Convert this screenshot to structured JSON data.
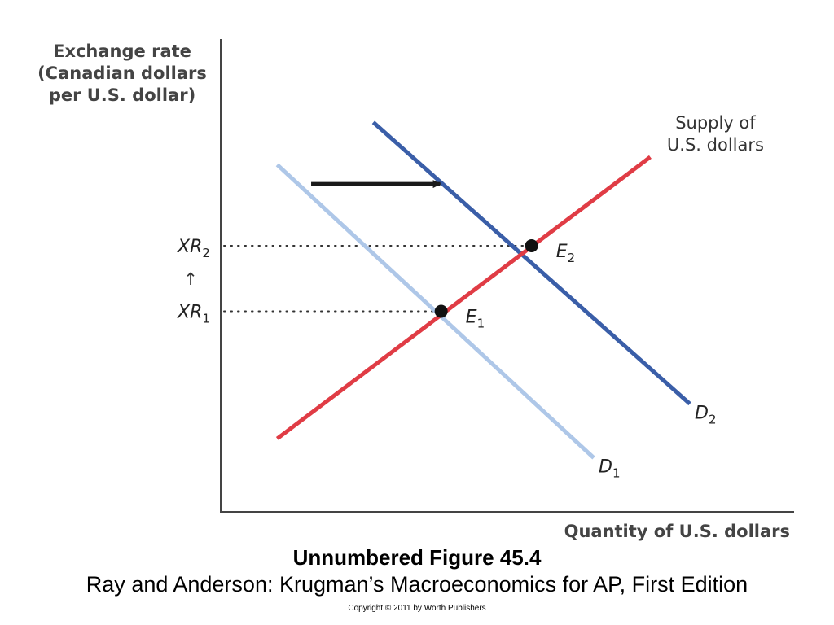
{
  "chart_data": {
    "type": "line",
    "title": "",
    "ylabel_lines": [
      "Exchange rate",
      "(Canadian dollars",
      "per U.S. dollar)"
    ],
    "xlabel": "Quantity of U.S. dollars",
    "xlim": [
      0,
      100
    ],
    "ylim": [
      0,
      100
    ],
    "series": [
      {
        "name": "D1",
        "label_main": "D",
        "label_sub": "1",
        "color": "#aec7e8",
        "points": [
          [
            10,
            90
          ],
          [
            66,
            14
          ]
        ]
      },
      {
        "name": "D2",
        "label_main": "D",
        "label_sub": "2",
        "color": "#3a5ea8",
        "points": [
          [
            27,
            101
          ],
          [
            83,
            28
          ]
        ]
      },
      {
        "name": "Supply of U.S. dollars",
        "label_lines": [
          "Supply of",
          "U.S. dollars"
        ],
        "color": "#e03c45",
        "points": [
          [
            10,
            19
          ],
          [
            76,
            92
          ]
        ]
      }
    ],
    "equilibria": [
      {
        "name": "E1",
        "label_main": "E",
        "label_sub": "1",
        "x": 39,
        "y": 52
      },
      {
        "name": "E2",
        "label_main": "E",
        "label_sub": "2",
        "x": 55,
        "y": 69
      }
    ],
    "y_marks": [
      {
        "label_main": "XR",
        "label_sub": "1",
        "y": 52
      },
      {
        "label_main": "XR",
        "label_sub": "2",
        "y": 69
      }
    ],
    "shift_arrow": {
      "from": [
        16,
        85
      ],
      "to": [
        40,
        85
      ]
    },
    "up_arrow_glyph": "↑"
  },
  "caption": {
    "title": "Unnumbered Figure 45.4",
    "source": "Ray and Anderson: Krugman’s Macroeconomics for AP, First Edition",
    "copyright": "Copyright © 2011 by Worth Publishers"
  }
}
